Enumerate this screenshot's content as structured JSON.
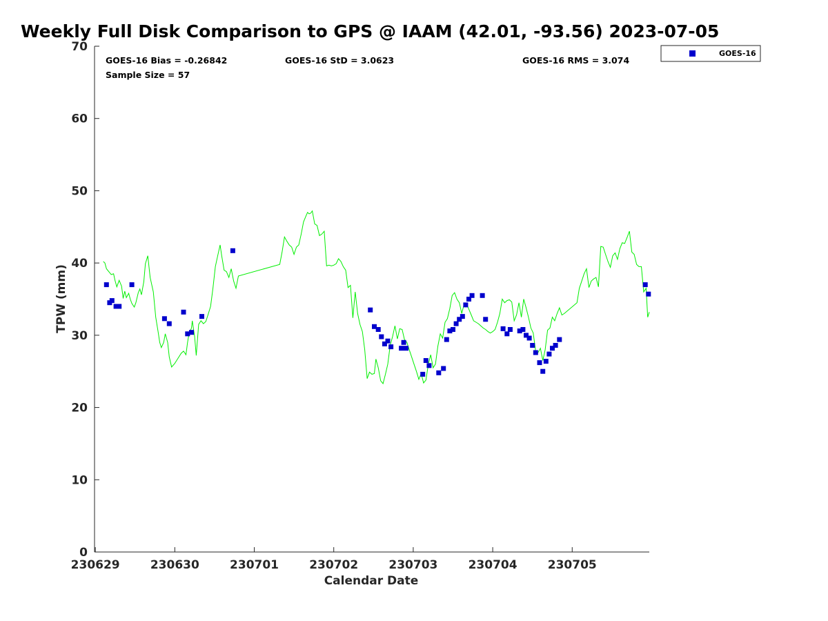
{
  "chart_data": {
    "type": "scatter",
    "title": "Weekly Full Disk Comparison to GPS @ IAAM (42.01, -93.56) 2023-07-05",
    "xlabel": "Calendar Date",
    "ylabel": "TPW (mm)",
    "ylim": [
      0,
      70
    ],
    "y_ticks": [
      0,
      10,
      20,
      30,
      40,
      50,
      60,
      70
    ],
    "x_day_range": [
      -0.01,
      6.97
    ],
    "x_ticks": [
      {
        "day": 0,
        "label": "230629"
      },
      {
        "day": 1,
        "label": "230630"
      },
      {
        "day": 2,
        "label": "230701"
      },
      {
        "day": 3,
        "label": "230702"
      },
      {
        "day": 4,
        "label": "230703"
      },
      {
        "day": 5,
        "label": "230704"
      },
      {
        "day": 6,
        "label": "230705"
      }
    ],
    "grid": false,
    "legend_position": "top-right",
    "stats": {
      "bias": "GOES-16 Bias = -0.26842",
      "std": "GOES-16 StD = 3.0623",
      "rms": "GOES-16 RMS = 3.074",
      "sample": "Sample Size = 57"
    },
    "gps_series": {
      "color": "#00ee00",
      "points": [
        [
          0.1,
          40.2
        ],
        [
          0.12,
          40.0
        ],
        [
          0.14,
          39.2
        ],
        [
          0.17,
          38.8
        ],
        [
          0.2,
          38.4
        ],
        [
          0.23,
          38.5
        ],
        [
          0.25,
          37.5
        ],
        [
          0.27,
          36.7
        ],
        [
          0.3,
          37.6
        ],
        [
          0.33,
          36.8
        ],
        [
          0.35,
          35.1
        ],
        [
          0.37,
          36.1
        ],
        [
          0.39,
          35.2
        ],
        [
          0.42,
          35.8
        ],
        [
          0.44,
          35.0
        ],
        [
          0.46,
          34.4
        ],
        [
          0.49,
          33.9
        ],
        [
          0.51,
          34.5
        ],
        [
          0.54,
          35.9
        ],
        [
          0.56,
          36.4
        ],
        [
          0.58,
          35.6
        ],
        [
          0.61,
          37.4
        ],
        [
          0.63,
          39.9
        ],
        [
          0.66,
          41.0
        ],
        [
          0.69,
          38.0
        ],
        [
          0.73,
          36.0
        ],
        [
          0.76,
          32.5
        ],
        [
          0.79,
          30.5
        ],
        [
          0.81,
          29.0
        ],
        [
          0.83,
          28.3
        ],
        [
          0.86,
          29.0
        ],
        [
          0.88,
          30.2
        ],
        [
          0.91,
          29.0
        ],
        [
          0.93,
          27.0
        ],
        [
          0.96,
          25.6
        ],
        [
          1.0,
          26.1
        ],
        [
          1.04,
          26.8
        ],
        [
          1.08,
          27.5
        ],
        [
          1.11,
          27.8
        ],
        [
          1.14,
          27.3
        ],
        [
          1.16,
          29.0
        ],
        [
          1.18,
          30.3
        ],
        [
          1.21,
          31.0
        ],
        [
          1.22,
          32.0
        ],
        [
          1.25,
          29.8
        ],
        [
          1.27,
          27.2
        ],
        [
          1.3,
          31.5
        ],
        [
          1.33,
          32.0
        ],
        [
          1.36,
          31.6
        ],
        [
          1.39,
          31.9
        ],
        [
          1.42,
          32.9
        ],
        [
          1.45,
          34.0
        ],
        [
          1.48,
          36.5
        ],
        [
          1.51,
          39.5
        ],
        [
          1.54,
          41.0
        ],
        [
          1.57,
          42.5
        ],
        [
          1.59,
          41.0
        ],
        [
          1.62,
          39.0
        ],
        [
          1.65,
          38.8
        ],
        [
          1.68,
          38.0
        ],
        [
          1.71,
          39.2
        ],
        [
          1.74,
          37.5
        ],
        [
          1.77,
          36.5
        ],
        [
          1.8,
          38.2
        ],
        [
          2.32,
          39.8
        ],
        [
          2.35,
          41.5
        ],
        [
          2.38,
          43.6
        ],
        [
          2.41,
          43.0
        ],
        [
          2.44,
          42.5
        ],
        [
          2.47,
          42.2
        ],
        [
          2.5,
          41.2
        ],
        [
          2.53,
          42.2
        ],
        [
          2.56,
          42.5
        ],
        [
          2.59,
          44.0
        ],
        [
          2.62,
          45.7
        ],
        [
          2.65,
          46.5
        ],
        [
          2.67,
          47.0
        ],
        [
          2.69,
          46.8
        ],
        [
          2.71,
          46.9
        ],
        [
          2.73,
          47.2
        ],
        [
          2.76,
          45.4
        ],
        [
          2.79,
          45.2
        ],
        [
          2.82,
          43.8
        ],
        [
          2.85,
          44.0
        ],
        [
          2.88,
          44.4
        ],
        [
          2.91,
          39.6
        ],
        [
          2.94,
          39.7
        ],
        [
          2.97,
          39.6
        ],
        [
          3.0,
          39.7
        ],
        [
          3.03,
          39.9
        ],
        [
          3.06,
          40.6
        ],
        [
          3.09,
          40.2
        ],
        [
          3.12,
          39.5
        ],
        [
          3.15,
          39.0
        ],
        [
          3.18,
          36.6
        ],
        [
          3.21,
          36.9
        ],
        [
          3.24,
          32.4
        ],
        [
          3.27,
          36.0
        ],
        [
          3.3,
          33.0
        ],
        [
          3.33,
          31.5
        ],
        [
          3.36,
          30.5
        ],
        [
          3.39,
          28.0
        ],
        [
          3.42,
          24.0
        ],
        [
          3.45,
          24.9
        ],
        [
          3.48,
          24.6
        ],
        [
          3.51,
          24.7
        ],
        [
          3.53,
          26.7
        ],
        [
          3.56,
          25.5
        ],
        [
          3.59,
          23.7
        ],
        [
          3.62,
          23.3
        ],
        [
          3.65,
          24.6
        ],
        [
          3.68,
          26.0
        ],
        [
          3.71,
          28.6
        ],
        [
          3.74,
          29.8
        ],
        [
          3.77,
          31.3
        ],
        [
          3.8,
          29.5
        ],
        [
          3.83,
          30.9
        ],
        [
          3.86,
          30.8
        ],
        [
          3.89,
          29.4
        ],
        [
          3.92,
          29.0
        ],
        [
          3.95,
          28.0
        ],
        [
          3.98,
          27.0
        ],
        [
          4.01,
          26.0
        ],
        [
          4.04,
          25.0
        ],
        [
          4.07,
          23.9
        ],
        [
          4.1,
          24.7
        ],
        [
          4.13,
          23.4
        ],
        [
          4.16,
          23.8
        ],
        [
          4.19,
          26.0
        ],
        [
          4.22,
          27.3
        ],
        [
          4.25,
          25.5
        ],
        [
          4.28,
          26.0
        ],
        [
          4.31,
          28.5
        ],
        [
          4.34,
          30.2
        ],
        [
          4.37,
          29.6
        ],
        [
          4.4,
          31.8
        ],
        [
          4.43,
          32.3
        ],
        [
          4.46,
          33.7
        ],
        [
          4.49,
          35.5
        ],
        [
          4.52,
          35.9
        ],
        [
          4.55,
          35.0
        ],
        [
          4.58,
          34.5
        ],
        [
          4.61,
          33.0
        ],
        [
          4.64,
          34.3
        ],
        [
          4.67,
          34.4
        ],
        [
          4.7,
          33.6
        ],
        [
          4.73,
          32.8
        ],
        [
          4.76,
          32.0
        ],
        [
          4.79,
          31.8
        ],
        [
          4.82,
          31.6
        ],
        [
          4.85,
          31.3
        ],
        [
          4.88,
          31.0
        ],
        [
          4.91,
          30.8
        ],
        [
          4.94,
          30.5
        ],
        [
          4.97,
          30.3
        ],
        [
          5.0,
          30.5
        ],
        [
          5.03,
          30.8
        ],
        [
          5.06,
          31.8
        ],
        [
          5.09,
          33.0
        ],
        [
          5.12,
          35.0
        ],
        [
          5.15,
          34.5
        ],
        [
          5.18,
          34.8
        ],
        [
          5.21,
          34.9
        ],
        [
          5.24,
          34.6
        ],
        [
          5.27,
          32.0
        ],
        [
          5.3,
          32.8
        ],
        [
          5.33,
          34.5
        ],
        [
          5.36,
          32.5
        ],
        [
          5.39,
          35.0
        ],
        [
          5.42,
          33.8
        ],
        [
          5.45,
          32.5
        ],
        [
          5.48,
          31.0
        ],
        [
          5.51,
          30.3
        ],
        [
          5.54,
          27.8
        ],
        [
          5.57,
          27.6
        ],
        [
          5.6,
          28.2
        ],
        [
          5.63,
          26.5
        ],
        [
          5.66,
          28.0
        ],
        [
          5.69,
          30.7
        ],
        [
          5.72,
          31.0
        ],
        [
          5.75,
          32.5
        ],
        [
          5.78,
          32.0
        ],
        [
          5.81,
          33.0
        ],
        [
          5.84,
          33.8
        ],
        [
          5.87,
          32.8
        ],
        [
          5.9,
          33.0
        ],
        [
          6.06,
          34.5
        ],
        [
          6.09,
          36.5
        ],
        [
          6.12,
          37.5
        ],
        [
          6.15,
          38.5
        ],
        [
          6.18,
          39.2
        ],
        [
          6.21,
          36.6
        ],
        [
          6.24,
          37.5
        ],
        [
          6.27,
          37.8
        ],
        [
          6.3,
          38.0
        ],
        [
          6.33,
          36.7
        ],
        [
          6.36,
          42.3
        ],
        [
          6.39,
          42.2
        ],
        [
          6.42,
          41.2
        ],
        [
          6.45,
          40.2
        ],
        [
          6.48,
          39.4
        ],
        [
          6.51,
          41.0
        ],
        [
          6.54,
          41.4
        ],
        [
          6.57,
          40.5
        ],
        [
          6.6,
          42.0
        ],
        [
          6.63,
          42.8
        ],
        [
          6.66,
          42.7
        ],
        [
          6.69,
          43.5
        ],
        [
          6.72,
          44.4
        ],
        [
          6.75,
          41.5
        ],
        [
          6.78,
          41.2
        ],
        [
          6.81,
          39.8
        ],
        [
          6.84,
          39.5
        ],
        [
          6.87,
          39.5
        ],
        [
          6.9,
          36.0
        ],
        [
          6.93,
          36.5
        ],
        [
          6.95,
          32.5
        ],
        [
          6.97,
          33.2
        ]
      ]
    },
    "series": [
      {
        "name": "GOES-16",
        "color": "#0000cc",
        "points": [
          [
            0.14,
            37.0
          ],
          [
            0.18,
            34.5
          ],
          [
            0.21,
            34.8
          ],
          [
            0.26,
            34.0
          ],
          [
            0.3,
            34.0
          ],
          [
            0.46,
            37.0
          ],
          [
            0.87,
            32.3
          ],
          [
            0.93,
            31.6
          ],
          [
            1.11,
            33.2
          ],
          [
            1.16,
            30.2
          ],
          [
            1.21,
            30.4
          ],
          [
            1.34,
            32.6
          ],
          [
            1.73,
            41.7
          ],
          [
            3.46,
            33.5
          ],
          [
            3.51,
            31.2
          ],
          [
            3.56,
            30.8
          ],
          [
            3.6,
            29.8
          ],
          [
            3.64,
            28.8
          ],
          [
            3.68,
            29.2
          ],
          [
            3.72,
            28.4
          ],
          [
            3.85,
            28.2
          ],
          [
            3.88,
            29.0
          ],
          [
            3.91,
            28.2
          ],
          [
            4.12,
            24.6
          ],
          [
            4.16,
            26.5
          ],
          [
            4.2,
            25.8
          ],
          [
            4.32,
            24.8
          ],
          [
            4.38,
            25.4
          ],
          [
            4.42,
            29.4
          ],
          [
            4.46,
            30.6
          ],
          [
            4.5,
            30.8
          ],
          [
            4.54,
            31.6
          ],
          [
            4.58,
            32.2
          ],
          [
            4.62,
            32.6
          ],
          [
            4.66,
            34.2
          ],
          [
            4.7,
            35.0
          ],
          [
            4.74,
            35.5
          ],
          [
            4.87,
            35.5
          ],
          [
            4.91,
            32.2
          ],
          [
            5.13,
            30.9
          ],
          [
            5.18,
            30.2
          ],
          [
            5.22,
            30.8
          ],
          [
            5.34,
            30.6
          ],
          [
            5.38,
            30.8
          ],
          [
            5.42,
            30.0
          ],
          [
            5.46,
            29.6
          ],
          [
            5.5,
            28.6
          ],
          [
            5.54,
            27.6
          ],
          [
            5.59,
            26.2
          ],
          [
            5.63,
            25.0
          ],
          [
            5.67,
            26.4
          ],
          [
            5.71,
            27.4
          ],
          [
            5.75,
            28.2
          ],
          [
            5.79,
            28.6
          ],
          [
            5.84,
            29.4
          ],
          [
            6.92,
            37.0
          ],
          [
            6.96,
            35.7
          ]
        ]
      }
    ]
  }
}
